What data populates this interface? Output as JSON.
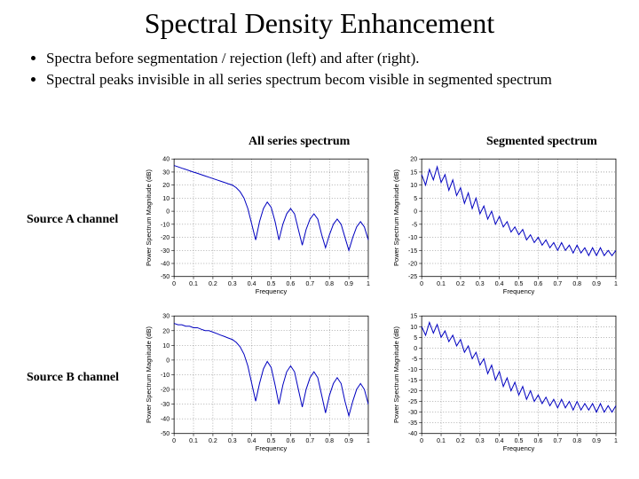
{
  "title": "Spectral Density Enhancement",
  "bullets": [
    "Spectra before segmentation / rejection (left) and after (right).",
    "Spectral peaks invisible in all series spectrum becom visible in segmented spectrum"
  ],
  "column_headers": [
    "All series spectrum",
    "Segmented spectrum"
  ],
  "row_labels": [
    "Source A channel",
    "Source B channel"
  ],
  "chart_common": {
    "xlim": [
      0,
      1
    ],
    "xticks": [
      0,
      0.1,
      0.2,
      0.3,
      0.4,
      0.5,
      0.6,
      0.7,
      0.8,
      0.9,
      1
    ],
    "xlabel": "Frequency",
    "ylabel": "Power Spectrum Magnitude (dB)",
    "label_fontsize": 7.5,
    "tick_fontsize": 7,
    "background": "#ffffff",
    "grid_color": "#000000",
    "grid_dash": "1 2",
    "frame_color": "#000000",
    "line_width": 1,
    "line_color": "#0000c0"
  },
  "charts": [
    {
      "id": "a_all",
      "type": "line",
      "ylim": [
        -50,
        40
      ],
      "yticks": [
        -50,
        -40,
        -30,
        -20,
        -10,
        0,
        10,
        20,
        30,
        40
      ],
      "x": [
        0,
        0.02,
        0.04,
        0.06,
        0.08,
        0.1,
        0.12,
        0.14,
        0.16,
        0.18,
        0.2,
        0.22,
        0.24,
        0.26,
        0.28,
        0.3,
        0.32,
        0.34,
        0.36,
        0.38,
        0.4,
        0.42,
        0.44,
        0.46,
        0.48,
        0.5,
        0.52,
        0.54,
        0.56,
        0.58,
        0.6,
        0.62,
        0.64,
        0.66,
        0.68,
        0.7,
        0.72,
        0.74,
        0.76,
        0.78,
        0.8,
        0.82,
        0.84,
        0.86,
        0.88,
        0.9,
        0.92,
        0.94,
        0.96,
        0.98,
        1.0
      ],
      "y": [
        35,
        34,
        33,
        32,
        31,
        30,
        29,
        28,
        27,
        26,
        25,
        24,
        23,
        22,
        21,
        20,
        18,
        15,
        10,
        2,
        -10,
        -22,
        -8,
        2,
        7,
        3,
        -8,
        -22,
        -10,
        -2,
        2,
        -2,
        -14,
        -26,
        -14,
        -6,
        -2,
        -6,
        -18,
        -28,
        -18,
        -10,
        -6,
        -10,
        -20,
        -30,
        -20,
        -12,
        -8,
        -12,
        -22
      ]
    },
    {
      "id": "a_seg",
      "type": "line",
      "ylim": [
        -25,
        20
      ],
      "yticks": [
        -25,
        -20,
        -15,
        -10,
        -5,
        0,
        5,
        10,
        15,
        20
      ],
      "x": [
        0,
        0.02,
        0.04,
        0.06,
        0.08,
        0.1,
        0.12,
        0.14,
        0.16,
        0.18,
        0.2,
        0.22,
        0.24,
        0.26,
        0.28,
        0.3,
        0.32,
        0.34,
        0.36,
        0.38,
        0.4,
        0.42,
        0.44,
        0.46,
        0.48,
        0.5,
        0.52,
        0.54,
        0.56,
        0.58,
        0.6,
        0.62,
        0.64,
        0.66,
        0.68,
        0.7,
        0.72,
        0.74,
        0.76,
        0.78,
        0.8,
        0.82,
        0.84,
        0.86,
        0.88,
        0.9,
        0.92,
        0.94,
        0.96,
        0.98,
        1.0
      ],
      "y": [
        14,
        10,
        16,
        12,
        17,
        11,
        14,
        8,
        12,
        6,
        9,
        3,
        7,
        1,
        5,
        -1,
        2,
        -3,
        0,
        -5,
        -2,
        -6,
        -4,
        -8,
        -6,
        -9,
        -7,
        -11,
        -9,
        -12,
        -10,
        -13,
        -11,
        -14,
        -12,
        -15,
        -12,
        -15,
        -13,
        -16,
        -13,
        -16,
        -14,
        -17,
        -14,
        -17,
        -14,
        -17,
        -15,
        -17,
        -15
      ]
    },
    {
      "id": "b_all",
      "type": "line",
      "ylim": [
        -50,
        30
      ],
      "yticks": [
        -50,
        -40,
        -30,
        -20,
        -10,
        0,
        10,
        20,
        30
      ],
      "x": [
        0,
        0.02,
        0.04,
        0.06,
        0.08,
        0.1,
        0.12,
        0.14,
        0.16,
        0.18,
        0.2,
        0.22,
        0.24,
        0.26,
        0.28,
        0.3,
        0.32,
        0.34,
        0.36,
        0.38,
        0.4,
        0.42,
        0.44,
        0.46,
        0.48,
        0.5,
        0.52,
        0.54,
        0.56,
        0.58,
        0.6,
        0.62,
        0.64,
        0.66,
        0.68,
        0.7,
        0.72,
        0.74,
        0.76,
        0.78,
        0.8,
        0.82,
        0.84,
        0.86,
        0.88,
        0.9,
        0.92,
        0.94,
        0.96,
        0.98,
        1.0
      ],
      "y": [
        25,
        24,
        24,
        23,
        23,
        22,
        22,
        21,
        20,
        20,
        19,
        18,
        17,
        16,
        15,
        14,
        12,
        9,
        4,
        -4,
        -16,
        -28,
        -16,
        -6,
        -1,
        -5,
        -17,
        -30,
        -17,
        -8,
        -4,
        -8,
        -20,
        -32,
        -20,
        -12,
        -8,
        -12,
        -24,
        -36,
        -24,
        -16,
        -12,
        -16,
        -28,
        -38,
        -28,
        -20,
        -16,
        -20,
        -30
      ]
    },
    {
      "id": "b_seg",
      "type": "line",
      "ylim": [
        -40,
        15
      ],
      "yticks": [
        -40,
        -35,
        -30,
        -25,
        -20,
        -15,
        -10,
        -5,
        0,
        5,
        10,
        15
      ],
      "x": [
        0,
        0.02,
        0.04,
        0.06,
        0.08,
        0.1,
        0.12,
        0.14,
        0.16,
        0.18,
        0.2,
        0.22,
        0.24,
        0.26,
        0.28,
        0.3,
        0.32,
        0.34,
        0.36,
        0.38,
        0.4,
        0.42,
        0.44,
        0.46,
        0.48,
        0.5,
        0.52,
        0.54,
        0.56,
        0.58,
        0.6,
        0.62,
        0.64,
        0.66,
        0.68,
        0.7,
        0.72,
        0.74,
        0.76,
        0.78,
        0.8,
        0.82,
        0.84,
        0.86,
        0.88,
        0.9,
        0.92,
        0.94,
        0.96,
        0.98,
        1.0
      ],
      "y": [
        10,
        6,
        12,
        7,
        11,
        5,
        8,
        3,
        6,
        1,
        4,
        -2,
        1,
        -5,
        -2,
        -8,
        -5,
        -12,
        -8,
        -15,
        -11,
        -18,
        -14,
        -20,
        -16,
        -22,
        -18,
        -24,
        -20,
        -25,
        -22,
        -26,
        -23,
        -27,
        -24,
        -28,
        -24,
        -28,
        -25,
        -29,
        -25,
        -29,
        -26,
        -29,
        -26,
        -30,
        -26,
        -30,
        -27,
        -30,
        -27
      ]
    }
  ]
}
